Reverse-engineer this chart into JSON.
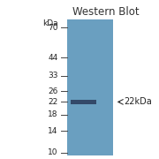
{
  "title": "Western Blot",
  "gel_color": "#6a9fc0",
  "background_color": "#ffffff",
  "band_color": "#2a3a5a",
  "kda_labels": [
    70,
    44,
    33,
    26,
    22,
    18,
    14,
    10
  ],
  "ylabel_kda": "kDa",
  "arrow_label": "← 22kDa",
  "band_kda": 22,
  "title_fontsize": 8.5,
  "label_fontsize": 6.5,
  "arrow_fontsize": 7
}
